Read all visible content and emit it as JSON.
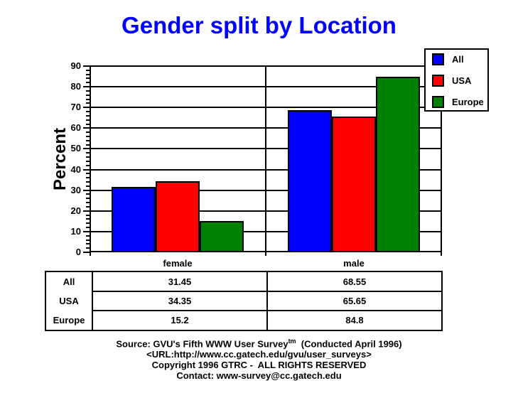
{
  "title": "Gender split by Location",
  "colors": {
    "title": "#0000ff",
    "all": "#0000ff",
    "usa": "#ff0000",
    "europe": "#008000",
    "axis": "#000000",
    "background": "#ffffff"
  },
  "chart_data": {
    "type": "bar",
    "title": "Gender split by Location",
    "categories": [
      "female",
      "male"
    ],
    "series": [
      {
        "name": "All",
        "color": "#0000ff",
        "values": [
          31.45,
          68.55
        ]
      },
      {
        "name": "USA",
        "color": "#ff0000",
        "values": [
          34.35,
          65.65
        ]
      },
      {
        "name": "Europe",
        "color": "#008000",
        "values": [
          15.2,
          84.8
        ]
      }
    ],
    "xlabel": "",
    "ylabel": "Percent",
    "ylim": [
      0,
      90
    ],
    "ytick_step": 10,
    "minor_tick_step": 2,
    "grid": true,
    "legend_position": "top-right"
  },
  "table": {
    "rows": [
      {
        "label": "All",
        "values": [
          "31.45",
          "68.55"
        ]
      },
      {
        "label": "USA",
        "values": [
          "34.35",
          "65.65"
        ]
      },
      {
        "label": "Europe",
        "values": [
          "15.2",
          "84.8"
        ]
      }
    ]
  },
  "footer": {
    "source_prefix": "Source: GVU's Fifth WWW User Survey",
    "source_sup": "tm",
    "source_suffix": "  (Conducted April 1996)",
    "url": "<URL:http://www.cc.gatech.edu/gvu/user_surveys>",
    "copyright": "Copyright 1996 GTRC -  ALL RIGHTS RESERVED",
    "contact": "Contact: www-survey@cc.gatech.edu"
  }
}
